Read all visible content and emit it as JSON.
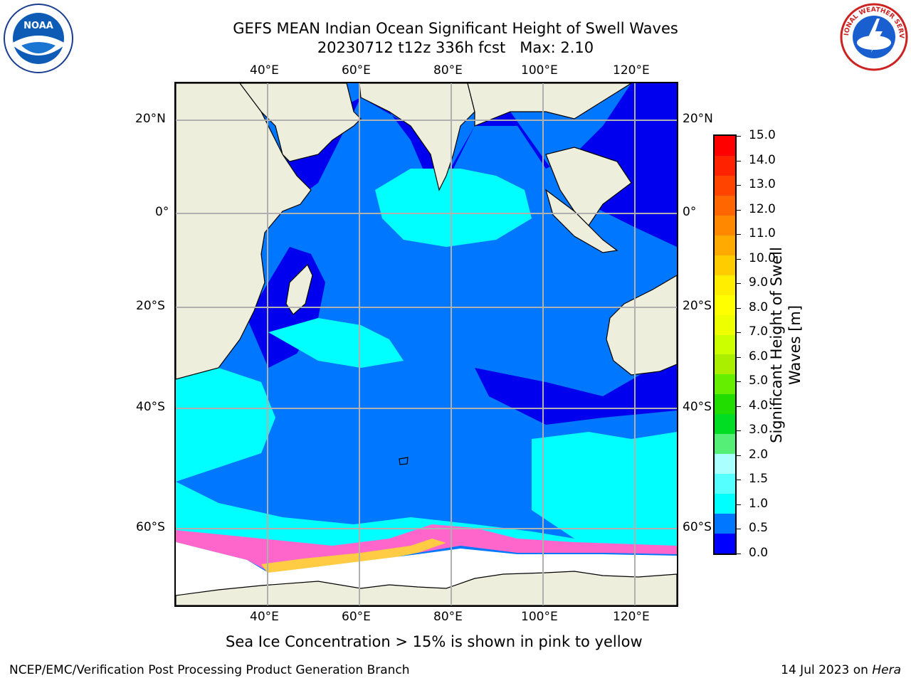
{
  "header": {
    "title_line1": "GEFS MEAN Indian Ocean Significant Height of Swell Waves",
    "title_line2": "20230712 t12z 336h fcst   Max: 2.10"
  },
  "logos": {
    "left": {
      "icon": "noaa-logo",
      "text": "NOAA"
    },
    "right": {
      "icon": "national-weather-service-logo",
      "text": "NATIONAL WEATHER SERVICE"
    }
  },
  "map": {
    "lon_labels": [
      "40°E",
      "60°E",
      "80°E",
      "100°E",
      "120°E"
    ],
    "lat_labels": [
      "20°N",
      "0°",
      "20°S",
      "40°S",
      "60°S"
    ],
    "extent": {
      "lon_min": 20,
      "lon_max": 130,
      "lat_min": -72,
      "lat_max": 28
    },
    "colors": {
      "land": "#eeeedd",
      "sea_ice_region": "#ffffff",
      "gridline": "#b0b0b0"
    }
  },
  "colorbar": {
    "label": "Significant Height of Swell\nWaves [m]",
    "ticks": [
      "15.0",
      "14.0",
      "13.0",
      "12.0",
      "11.0",
      "10.0",
      "9.0",
      "8.0",
      "7.0",
      "6.0",
      "5.0",
      "4.0",
      "3.0",
      "2.0",
      "1.5",
      "1.0",
      "0.5",
      "0.0"
    ],
    "segment_colors_top_to_bottom": [
      "#ff0000",
      "#ff2200",
      "#ff4400",
      "#ff6600",
      "#ff8800",
      "#ffaa00",
      "#ffcc00",
      "#ffee00",
      "#ffff00",
      "#eeff00",
      "#ccff00",
      "#aaee00",
      "#66ee00",
      "#22dd00",
      "#00dd22",
      "#55ee77",
      "#aaffff",
      "#55ffff",
      "#00ffff",
      "#0077ff",
      "#0000ff"
    ]
  },
  "caption": "Sea Ice Concentration > 15% is shown in pink to yellow",
  "footer": {
    "left": "NCEP/EMC/Verification Post Processing Product Generation Branch",
    "right_prefix": "14 Jul 2023 on ",
    "right_host": "Hera"
  }
}
